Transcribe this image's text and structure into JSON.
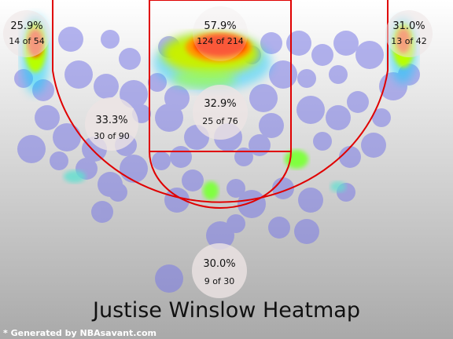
{
  "chart_data": {
    "type": "heatmap",
    "title": "Justise Winslow Heatmap",
    "credit": "* Generated by NBAsavant.com",
    "colors": {
      "background_top": "#ffffff",
      "background_bottom": "#a9a9a9",
      "court_lines": "#e00000",
      "zone_circle": "#ece4e4"
    },
    "zones": [
      {
        "name": "left-corner-three",
        "pct": "25.9%",
        "count": "14 of 54"
      },
      {
        "name": "restricted-area",
        "pct": "57.9%",
        "count": "124 of 214"
      },
      {
        "name": "right-corner-three",
        "pct": "31.0%",
        "count": "13 of 42"
      },
      {
        "name": "paint-non-ra",
        "pct": "32.9%",
        "count": "25 of 76"
      },
      {
        "name": "mid-range",
        "pct": "33.3%",
        "count": "30 of 90"
      },
      {
        "name": "above-break-three",
        "pct": "30.0%",
        "count": "9 of 30"
      }
    ]
  }
}
